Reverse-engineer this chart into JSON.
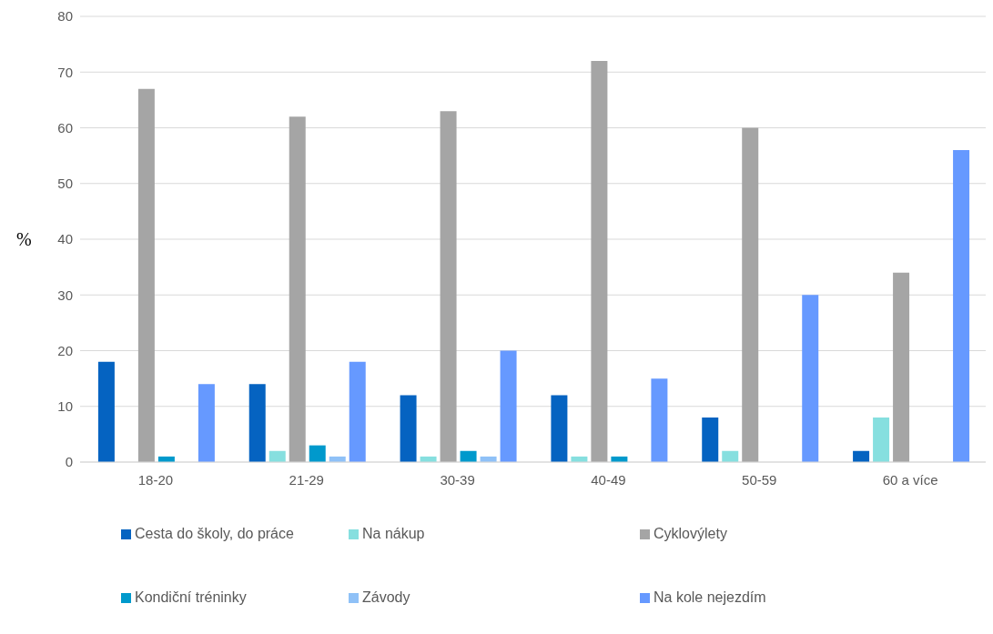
{
  "chart_data": {
    "type": "bar",
    "ylabel": "%",
    "categories": [
      "18-20",
      "21-29",
      "30-39",
      "40-49",
      "50-59",
      "60 a více"
    ],
    "series": [
      {
        "name": "Cesta do školy, do práce",
        "color": "#0563c1",
        "values": [
          18,
          14,
          12,
          12,
          8,
          2
        ]
      },
      {
        "name": "Na nákup",
        "color": "#86dfdf",
        "values": [
          0,
          2,
          1,
          1,
          2,
          8
        ]
      },
      {
        "name": "Cyklovýlety",
        "color": "#a5a5a5",
        "values": [
          67,
          62,
          63,
          72,
          60,
          34
        ]
      },
      {
        "name": "Kondiční tréninky",
        "color": "#0099cc",
        "values": [
          1,
          3,
          2,
          1,
          0,
          0
        ]
      },
      {
        "name": "Závody",
        "color": "#8fc1f7",
        "values": [
          0,
          1,
          1,
          0,
          0,
          0
        ]
      },
      {
        "name": "Na kole nejezdím",
        "color": "#6699ff",
        "values": [
          14,
          18,
          20,
          15,
          30,
          56
        ]
      }
    ],
    "ylim": [
      0,
      80
    ],
    "yticks": [
      0,
      10,
      20,
      30,
      40,
      50,
      60,
      70,
      80
    ],
    "grid": "y",
    "legend": "bottom"
  }
}
